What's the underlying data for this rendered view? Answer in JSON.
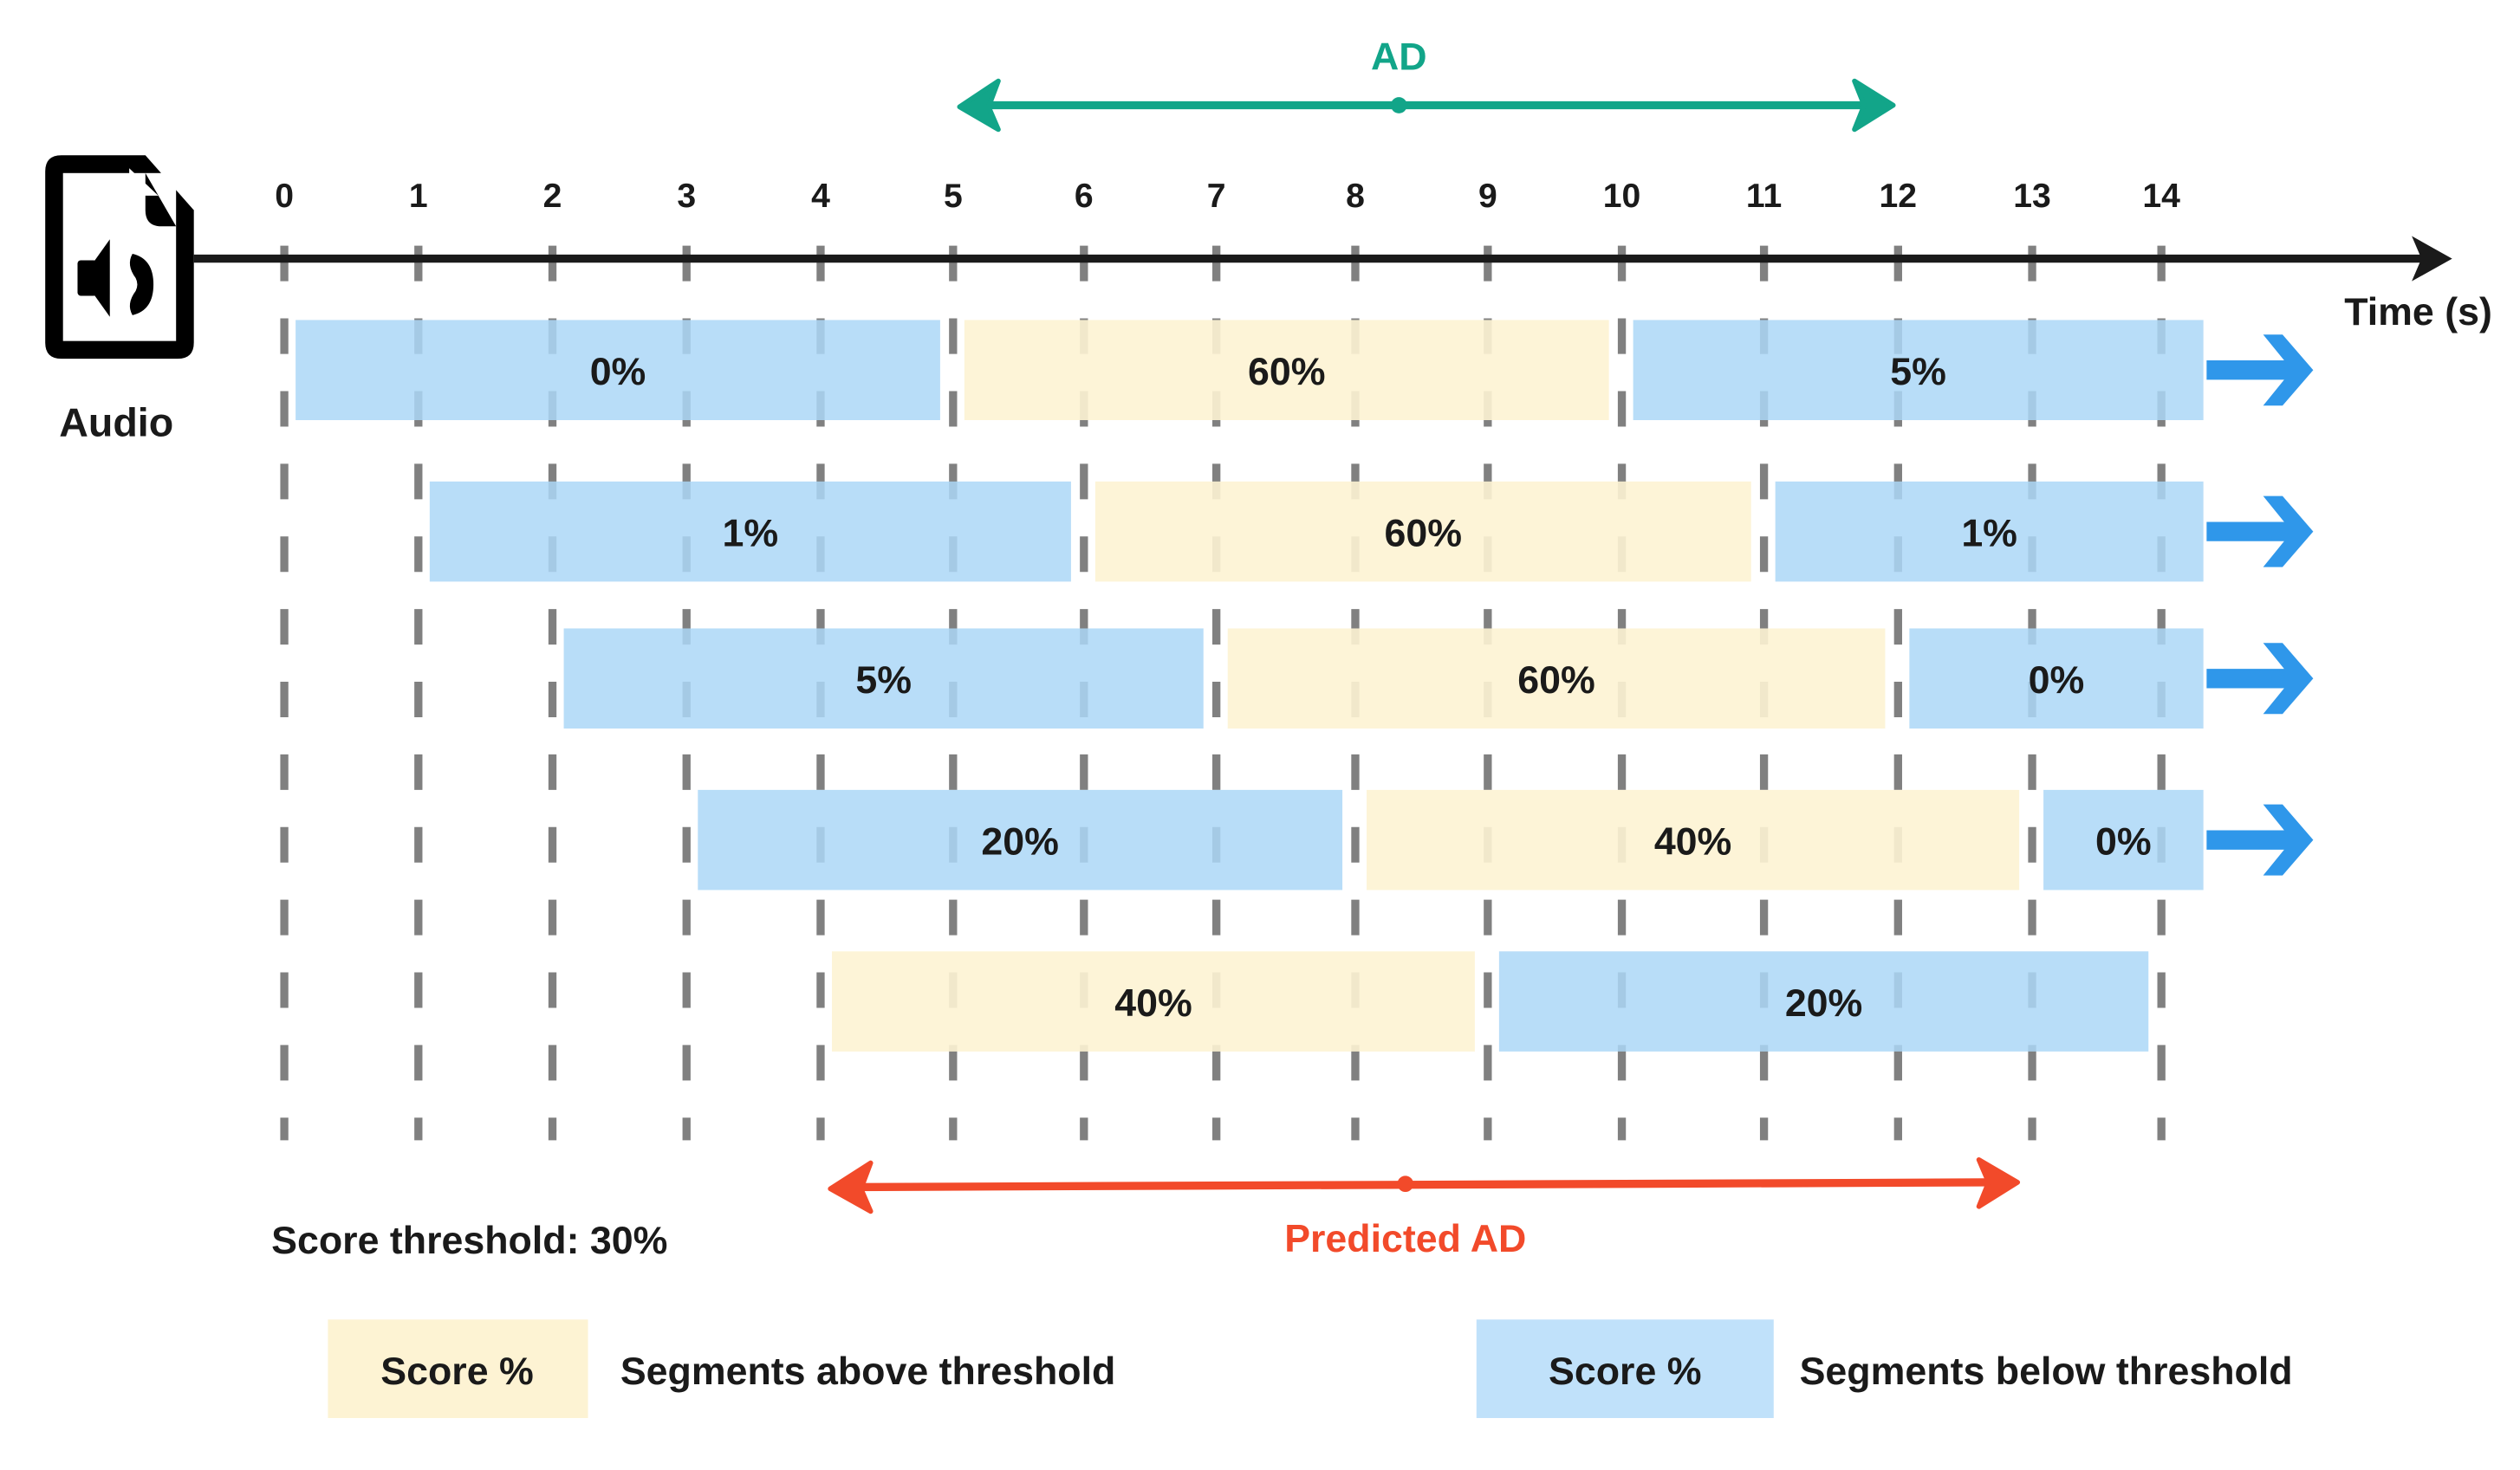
{
  "colors": {
    "above": "#fdf3d3",
    "below": "#abd7f7",
    "legend_below": "#c0e1fa",
    "axis": "#1a1a1a",
    "tick": "#808080",
    "ad": "#12a589",
    "predicted": "#f24a2a",
    "continue_arrow": "#2f97ea"
  },
  "audio": {
    "icon": "audio-file-icon",
    "label": "Audio"
  },
  "axis": {
    "label": "Time (s)",
    "ticks": [
      "0",
      "1",
      "2",
      "3",
      "4",
      "5",
      "6",
      "7",
      "8",
      "9",
      "10",
      "11",
      "12",
      "13",
      "14"
    ]
  },
  "ad_range": {
    "label": "AD"
  },
  "predicted_range": {
    "label": "Predicted AD"
  },
  "threshold_text": "Score threshold: 30%",
  "rows": [
    {
      "continues": true,
      "segments": [
        {
          "start": 0,
          "end": 5,
          "score": "0%",
          "above": false
        },
        {
          "start": 5,
          "end": 10,
          "score": "60%",
          "above": true
        },
        {
          "start": 10,
          "end": 14.3,
          "score": "5%",
          "above": false
        }
      ]
    },
    {
      "continues": true,
      "segments": [
        {
          "start": 1,
          "end": 6,
          "score": "1%",
          "above": false
        },
        {
          "start": 6,
          "end": 11,
          "score": "60%",
          "above": true
        },
        {
          "start": 11,
          "end": 14.3,
          "score": "1%",
          "above": false
        }
      ]
    },
    {
      "continues": true,
      "segments": [
        {
          "start": 2,
          "end": 7,
          "score": "5%",
          "above": false
        },
        {
          "start": 7,
          "end": 12,
          "score": "60%",
          "above": true
        },
        {
          "start": 12,
          "end": 14.3,
          "score": "0%",
          "above": false
        }
      ]
    },
    {
      "continues": true,
      "segments": [
        {
          "start": 3,
          "end": 8,
          "score": "20%",
          "above": false
        },
        {
          "start": 8,
          "end": 13,
          "score": "40%",
          "above": true
        },
        {
          "start": 13,
          "end": 14.3,
          "score": "0%",
          "above": false
        }
      ]
    },
    {
      "continues": false,
      "segments": [
        {
          "start": 4,
          "end": 9,
          "score": "40%",
          "above": true
        },
        {
          "start": 9,
          "end": 14,
          "score": "20%",
          "above": false
        }
      ]
    }
  ],
  "legend": [
    {
      "swatch": "Score %",
      "text": "Segments above threshold",
      "above": true
    },
    {
      "swatch": "Score %",
      "text": "Segments below threshold",
      "above": false
    }
  ]
}
